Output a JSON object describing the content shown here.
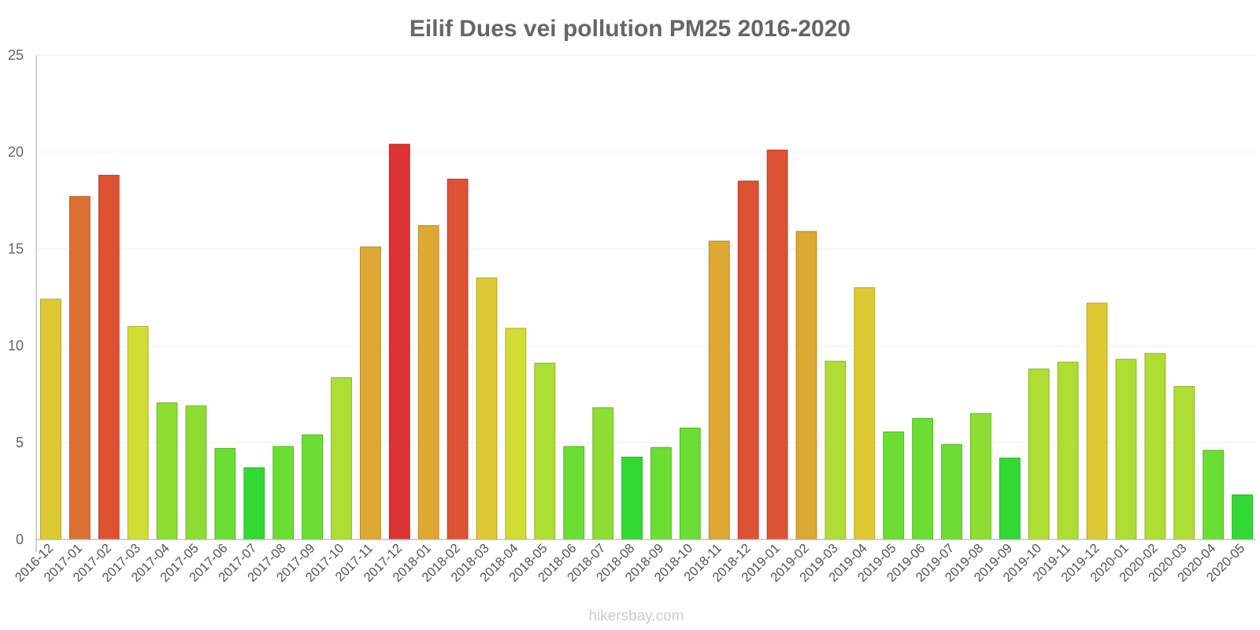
{
  "chart_data": {
    "type": "bar",
    "title": "Eilif Dues vei pollution PM25 2016-2020",
    "xlabel": "",
    "ylabel": "",
    "ylim": [
      0,
      25
    ],
    "yticks": [
      0,
      5,
      10,
      15,
      20,
      25
    ],
    "grid": true,
    "categories": [
      "2016-12",
      "2017-01",
      "2017-02",
      "2017-03",
      "2017-04",
      "2017-05",
      "2017-06",
      "2017-07",
      "2017-08",
      "2017-09",
      "2017-10",
      "2017-11",
      "2017-12",
      "2018-01",
      "2018-02",
      "2018-03",
      "2018-04",
      "2018-05",
      "2018-06",
      "2018-07",
      "2018-08",
      "2018-09",
      "2018-10",
      "2018-11",
      "2018-12",
      "2019-01",
      "2019-02",
      "2019-03",
      "2019-04",
      "2019-05",
      "2019-06",
      "2019-07",
      "2019-08",
      "2019-09",
      "2019-10",
      "2019-11",
      "2019-12",
      "2020-01",
      "2020-02",
      "2020-03",
      "2020-04",
      "2020-05"
    ],
    "values": [
      12.4,
      17.7,
      18.8,
      11.0,
      7.05,
      6.9,
      4.7,
      3.7,
      4.8,
      5.4,
      8.35,
      15.1,
      20.4,
      16.2,
      18.6,
      13.5,
      10.9,
      9.1,
      4.8,
      6.8,
      4.25,
      4.75,
      5.75,
      15.4,
      18.5,
      20.1,
      15.9,
      9.2,
      13.0,
      5.55,
      6.25,
      4.9,
      6.5,
      4.2,
      8.8,
      9.15,
      12.2,
      9.3,
      9.6,
      7.9,
      4.6,
      2.3
    ],
    "colors": {
      "very_low": "#33d933",
      "low": "#6bde33",
      "moderate_low": "#8ddd33",
      "moderate": "#aedd33",
      "medium": "#d2dd33",
      "elevated": "#ddc933",
      "high": "#dda833",
      "very_high": "#dd7033",
      "severe": "#dd5233",
      "extreme": "#dd3333"
    }
  },
  "watermark": "hikersbay.com"
}
